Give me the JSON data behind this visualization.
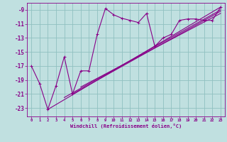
{
  "xlabel": "Windchill (Refroidissement éolien,°C)",
  "bg_color": "#c0e0e0",
  "grid_color": "#90c0c0",
  "line_color": "#880088",
  "xlim": [
    -0.5,
    23.5
  ],
  "ylim": [
    -24.2,
    -8.0
  ],
  "xticks": [
    0,
    1,
    2,
    3,
    4,
    5,
    6,
    7,
    8,
    9,
    10,
    11,
    12,
    13,
    14,
    15,
    16,
    17,
    18,
    19,
    20,
    21,
    22,
    23
  ],
  "yticks": [
    -23,
    -21,
    -19,
    -17,
    -15,
    -13,
    -11,
    -9
  ],
  "scatter_x": [
    0,
    1,
    2,
    3,
    4,
    5,
    6,
    7,
    8,
    9,
    10,
    11,
    12,
    13,
    14,
    15,
    16,
    17,
    18,
    19,
    20,
    21,
    22,
    23
  ],
  "scatter_y": [
    -17.0,
    -19.5,
    -23.2,
    -19.8,
    -15.7,
    -21.0,
    -17.7,
    -17.7,
    -12.5,
    -8.8,
    -9.7,
    -10.2,
    -10.5,
    -10.8,
    -9.5,
    -14.2,
    -13.0,
    -12.5,
    -10.5,
    -10.3,
    -10.3,
    -10.5,
    -10.5,
    -8.6
  ],
  "line1_x": [
    2,
    23
  ],
  "line1_y": [
    -23.2,
    -8.6
  ],
  "line2_x": [
    4,
    23
  ],
  "line2_y": [
    -21.5,
    -9.0
  ],
  "line3_x": [
    5,
    23
  ],
  "line3_y": [
    -21.0,
    -9.2
  ],
  "line4_x": [
    6,
    23
  ],
  "line4_y": [
    -20.0,
    -9.5
  ],
  "marker_size": 2.5,
  "linewidth": 0.8
}
